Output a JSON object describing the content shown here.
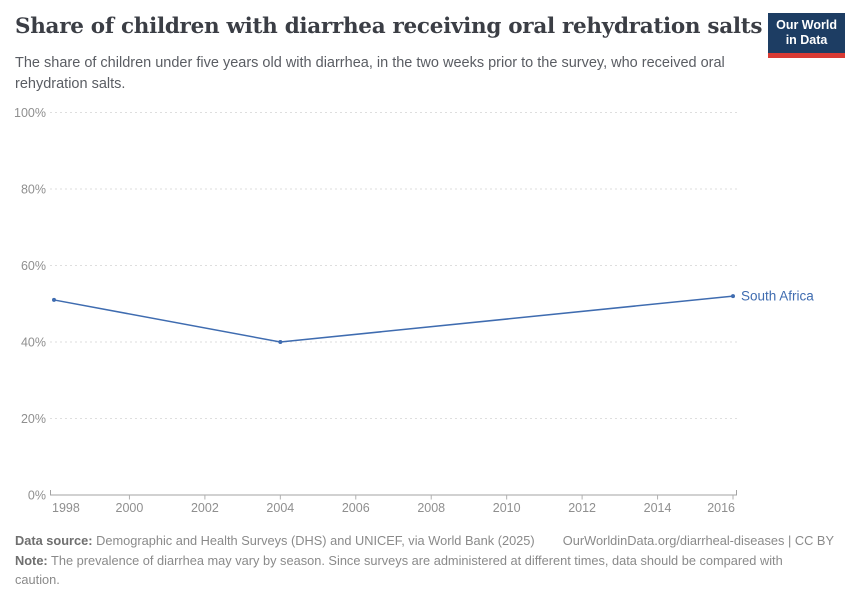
{
  "header": {
    "title": "Share of children with diarrhea receiving oral rehydration salts",
    "subtitle": "The share of children under five years old with diarrhea, in the two weeks prior to the survey, who received oral rehydration salts.",
    "logo": {
      "line1": "Our World",
      "line2": "in Data",
      "bg_color": "#1d3d63",
      "accent_color": "#d93a34"
    }
  },
  "chart_data": {
    "type": "line",
    "title": "Share of children with diarrhea receiving oral rehydration salts",
    "xlabel": "",
    "ylabel": "",
    "xlim": [
      1998,
      2016
    ],
    "ylim": [
      0,
      100
    ],
    "x_ticks": [
      1998,
      2000,
      2002,
      2004,
      2006,
      2008,
      2010,
      2012,
      2014,
      2016
    ],
    "y_ticks": [
      0,
      20,
      40,
      60,
      80,
      100
    ],
    "y_tick_suffix": "%",
    "grid": "horizontal-dashed",
    "legend_position": "end-of-line-label",
    "series": [
      {
        "name": "South Africa",
        "color": "#3f6cb0",
        "points": [
          [
            1998,
            51
          ],
          [
            2004,
            40
          ],
          [
            2016,
            52
          ]
        ]
      }
    ]
  },
  "footer": {
    "data_source_label": "Data source:",
    "data_source_text": " Demographic and Health Surveys (DHS) and UNICEF, via World Bank (2025)",
    "link": "OurWorldinData.org/diarrheal-diseases | CC BY",
    "note_label": "Note:",
    "note_text": " The prevalence of diarrhea may vary by season. Since surveys are administered at different times, data should be compared with caution."
  }
}
